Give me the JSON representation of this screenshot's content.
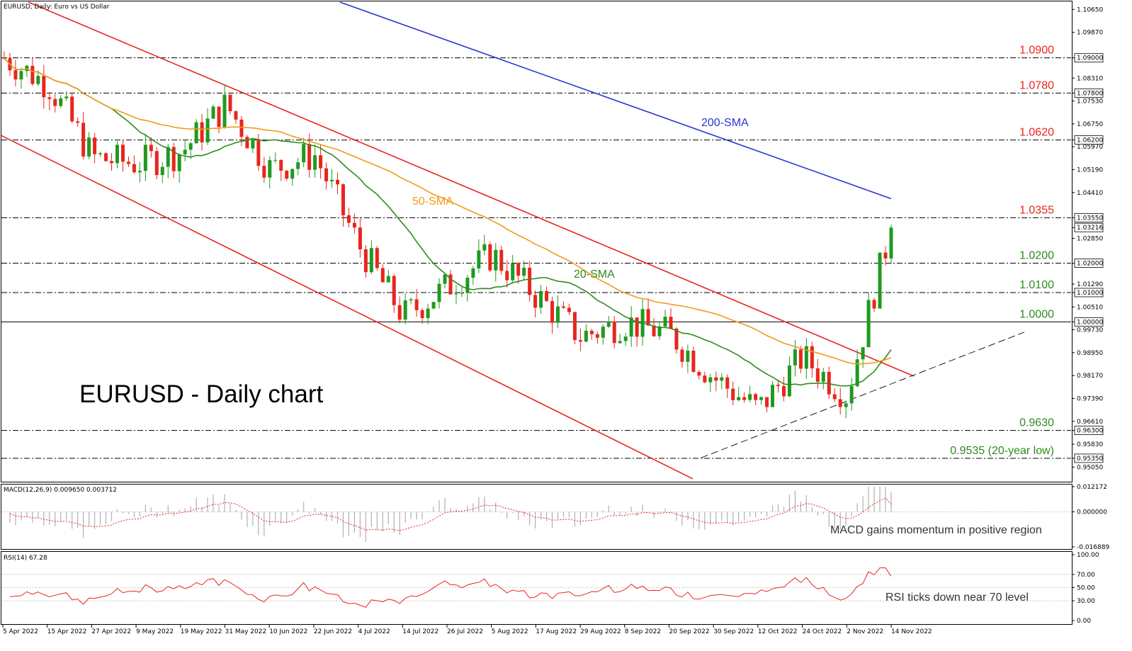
{
  "header": {
    "main": "EURUSD, Daily:  Euro vs US Dollar",
    "macd": "MACD(12,26,9) 0.009650 0.003712",
    "rsi": "RSI(14) 67.28"
  },
  "title": "EURUSD - Daily chart",
  "annotations": {
    "sma200": "200-SMA",
    "sma50": "50-SMA",
    "sma20": "20-SMA",
    "macd_note": "MACD gains momentum in positive region",
    "rsi_note": "RSI ticks down near 70 level"
  },
  "price_axis": {
    "ticks": [
      "1.10650",
      "1.09870",
      "1.09000",
      "1.08310",
      "1.07800",
      "1.07530",
      "1.06750",
      "1.06200",
      "1.05970",
      "1.05190",
      "1.04410",
      "1.03550",
      "1.03216",
      "1.02850",
      "1.02000",
      "1.01290",
      "1.01000",
      "1.00510",
      "1.00000",
      "0.99730",
      "0.98950",
      "0.98170",
      "0.97390",
      "0.96610",
      "0.96300",
      "0.95830",
      "0.95350",
      "0.95050"
    ],
    "boxed": [
      "1.09000",
      "1.07800",
      "1.06200",
      "1.03550",
      "1.03216",
      "1.02000",
      "1.01000",
      "1.00000",
      "0.96300",
      "0.95350"
    ]
  },
  "levels": [
    {
      "value": 1.09,
      "label": "1.0900",
      "color": "#e8261e"
    },
    {
      "value": 1.078,
      "label": "1.0780",
      "color": "#e8261e"
    },
    {
      "value": 1.062,
      "label": "1.0620",
      "color": "#e8261e"
    },
    {
      "value": 1.0355,
      "label": "1.0355",
      "color": "#e8261e"
    },
    {
      "value": 1.02,
      "label": "1.0200",
      "color": "#2e8b1e"
    },
    {
      "value": 1.01,
      "label": "1.0100",
      "color": "#2e8b1e"
    },
    {
      "value": 1.0,
      "label": "1.0000",
      "color": "#2e8b1e"
    },
    {
      "value": 0.963,
      "label": "0.9630",
      "color": "#2e8b1e"
    },
    {
      "value": 0.9535,
      "label": "0.9535 (20-year low)",
      "color": "#2e8b1e"
    }
  ],
  "macd_axis": [
    "0.012172",
    "0.000000",
    "-0.016889"
  ],
  "rsi_axis": [
    "100.00",
    "70.00",
    "50.00",
    "30.00",
    "0.00"
  ],
  "date_axis": [
    "5 Apr 2022",
    "15 Apr 2022",
    "27 Apr 2022",
    "9 May 2022",
    "19 May 2022",
    "31 May 2022",
    "10 Jun 2022",
    "22 Jun 2022",
    "4 Jul 2022",
    "14 Jul 2022",
    "26 Jul 2022",
    "5 Aug 2022",
    "17 Aug 2022",
    "29 Aug 2022",
    "8 Sep 2022",
    "20 Sep 2022",
    "30 Sep 2022",
    "12 Oct 2022",
    "24 Oct 2022",
    "2 Nov 2022",
    "14 Nov 2022"
  ],
  "colors": {
    "up": "#1f9a1f",
    "down": "#e8261e",
    "sma20": "#2e8b1e",
    "sma50": "#f39a1a",
    "sma200": "#2a36d4",
    "channel": "#e8261e"
  },
  "chart_data": {
    "type": "candlestick",
    "symbol": "EURUSD",
    "timeframe": "Daily",
    "ylim": [
      0.946,
      1.109
    ],
    "close_series": [
      [
        "5 Apr 2022",
        1.09
      ],
      [
        "15 Apr 2022",
        1.081
      ],
      [
        "27 Apr 2022",
        1.056
      ],
      [
        "9 May 2022",
        1.054
      ],
      [
        "19 May 2022",
        1.058
      ],
      [
        "31 May 2022",
        1.074
      ],
      [
        "10 Jun 2022",
        1.052
      ],
      [
        "22 Jun 2022",
        1.057
      ],
      [
        "4 Jul 2022",
        1.026
      ],
      [
        "14 Jul 2022",
        1.002
      ],
      [
        "26 Jul 2022",
        1.012
      ],
      [
        "5 Aug 2022",
        1.023
      ],
      [
        "17 Aug 2022",
        1.009
      ],
      [
        "29 Aug 2022",
        0.995
      ],
      [
        "8 Sep 2022",
        1.0
      ],
      [
        "20 Sep 2022",
        0.996
      ],
      [
        "30 Sep 2022",
        0.981
      ],
      [
        "12 Oct 2022",
        0.97
      ],
      [
        "24 Oct 2022",
        0.988
      ],
      [
        "2 Nov 2022",
        0.975
      ],
      [
        "14 Nov 2022",
        1.0322
      ]
    ],
    "last_price": 1.03216,
    "sma": {
      "20": 0.998,
      "50": 0.99,
      "200": 1.042
    },
    "macd": {
      "params": "12,26,9",
      "main": 0.00965,
      "signal": 0.003712,
      "ylim": [
        -0.016889,
        0.012172
      ]
    },
    "rsi": {
      "period": 14,
      "value": 67.28,
      "levels": [
        70,
        50,
        30
      ]
    }
  }
}
